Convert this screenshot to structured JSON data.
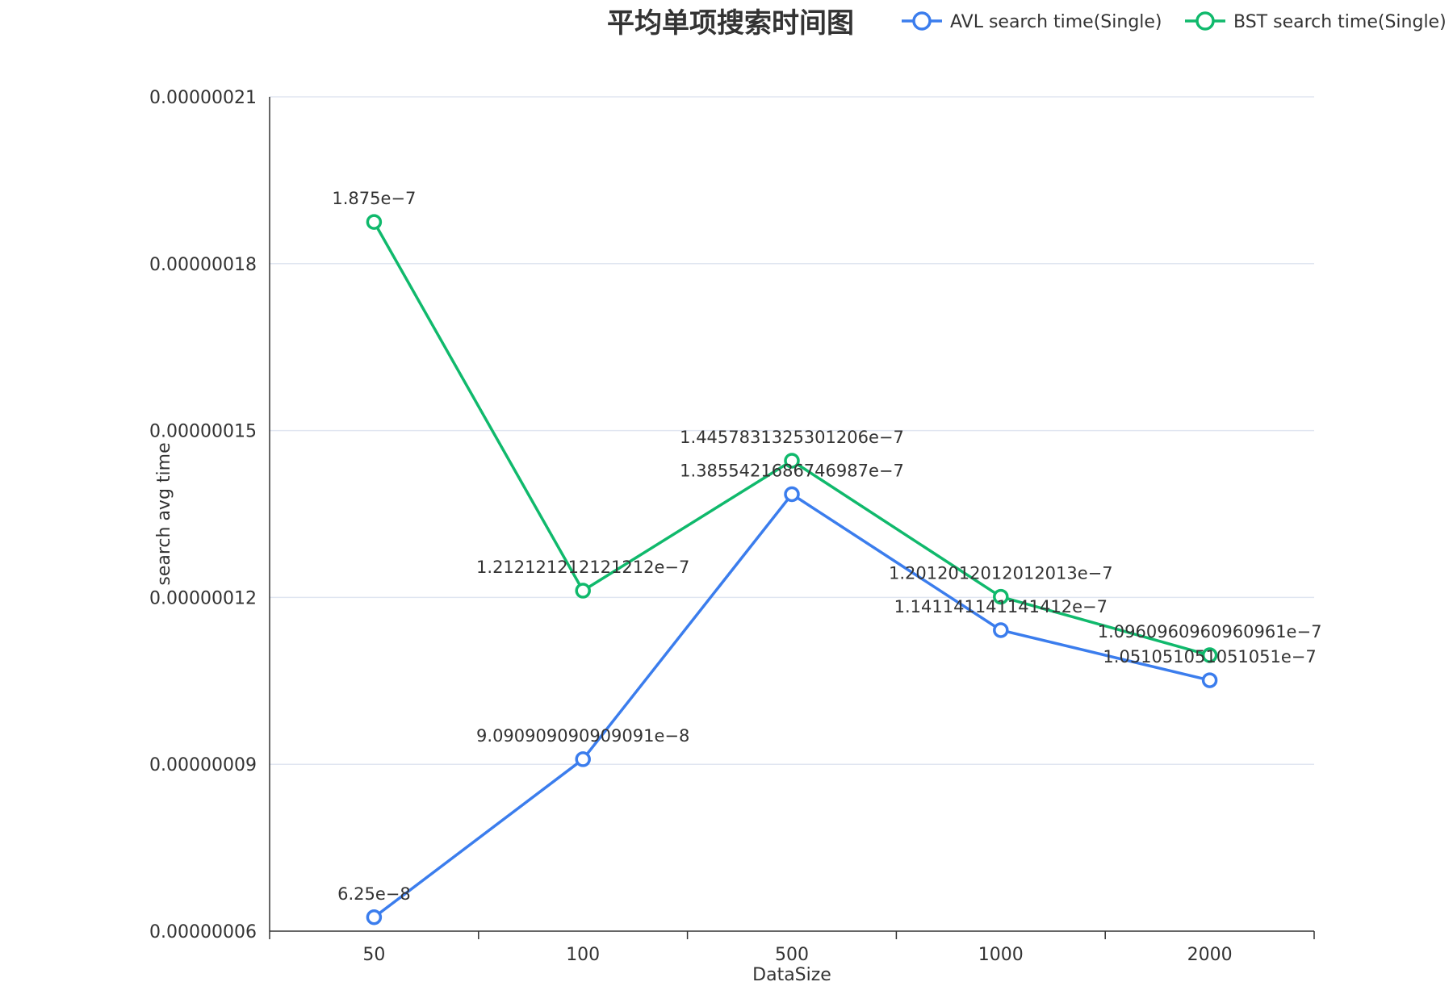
{
  "chart_data": {
    "type": "line",
    "title": "平均单项搜索时间图",
    "xlabel": "DataSize",
    "ylabel": "search avg time",
    "categories": [
      "50",
      "100",
      "500",
      "1000",
      "2000"
    ],
    "ylim": [
      6e-08,
      2.1e-07
    ],
    "yticks": [
      "0.00000006",
      "0.00000009",
      "0.00000012",
      "0.00000015",
      "0.00000018",
      "0.00000021"
    ],
    "grid": true,
    "legend_position": "top-right",
    "series": [
      {
        "name": "AVL search time(Single)",
        "color": "#3b7ded",
        "values": [
          6.25e-08,
          9.090909090909091e-08,
          1.3855421686746987e-07,
          1.141141141141412e-07,
          1.051051051051051e-07
        ],
        "labels": [
          "6.25e−8",
          "9.090909090909091e−8",
          "1.3855421686746987e−7",
          "1.141141141141412e−7",
          "1.051051051051051e−7"
        ]
      },
      {
        "name": "BST search time(Single)",
        "color": "#10b96c",
        "values": [
          1.875e-07,
          1.212121212121212e-07,
          1.4457831325301206e-07,
          1.2012012012012013e-07,
          1.0960960960960961e-07
        ],
        "labels": [
          "1.875e−7",
          "1.212121212121212e−7",
          "1.4457831325301206e−7",
          "1.2012012012012013e−7",
          "1.0960960960960961e−7"
        ]
      }
    ]
  }
}
